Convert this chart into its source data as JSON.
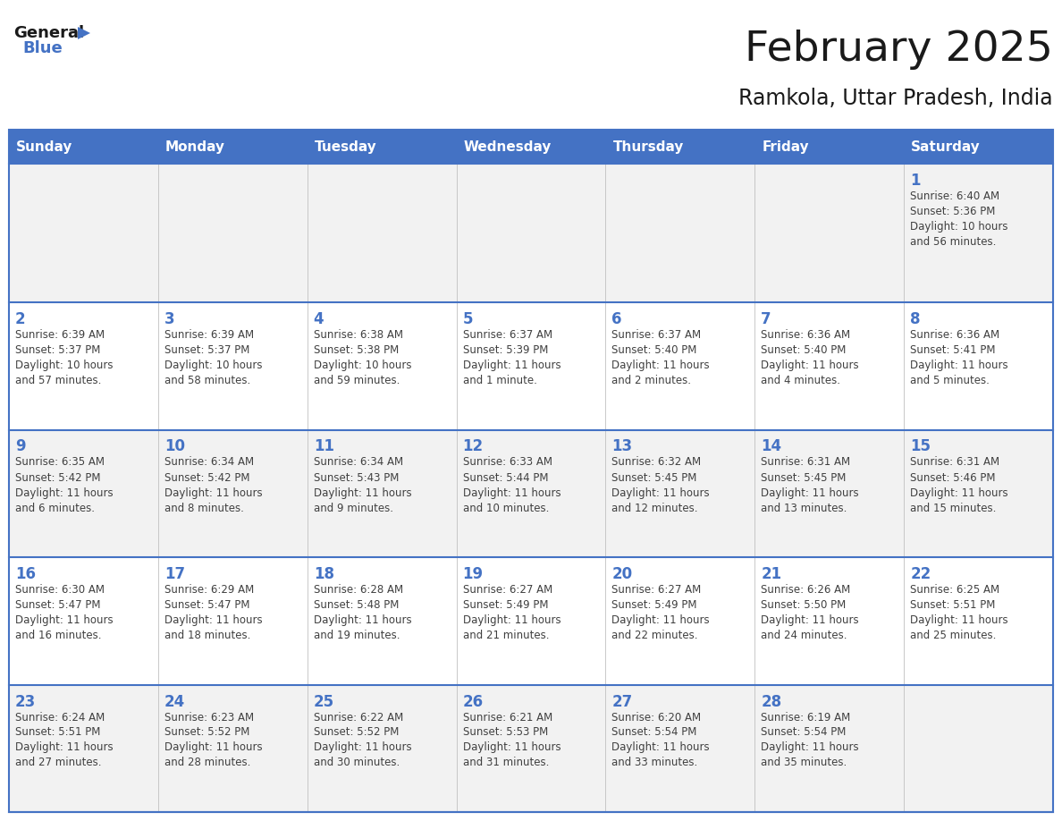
{
  "title": "February 2025",
  "subtitle": "Ramkola, Uttar Pradesh, India",
  "days_of_week": [
    "Sunday",
    "Monday",
    "Tuesday",
    "Wednesday",
    "Thursday",
    "Friday",
    "Saturday"
  ],
  "header_bg_color": "#4472C4",
  "header_text_color": "#FFFFFF",
  "cell_bg_odd": "#F2F2F2",
  "cell_bg_even": "#FFFFFF",
  "border_color": "#4472C4",
  "border_color_light": "#C0C0C0",
  "day_number_color": "#4472C4",
  "cell_text_color": "#404040",
  "title_color": "#1a1a1a",
  "subtitle_color": "#1a1a1a",
  "logo_general_color": "#1a1a1a",
  "logo_blue_color": "#4472C4",
  "calendar_data": [
    [
      null,
      null,
      null,
      null,
      null,
      null,
      {
        "day": 1,
        "sunrise": "6:40 AM",
        "sunset": "5:36 PM",
        "daylight": "10 hours and 56 minutes."
      }
    ],
    [
      {
        "day": 2,
        "sunrise": "6:39 AM",
        "sunset": "5:37 PM",
        "daylight": "10 hours and 57 minutes."
      },
      {
        "day": 3,
        "sunrise": "6:39 AM",
        "sunset": "5:37 PM",
        "daylight": "10 hours and 58 minutes."
      },
      {
        "day": 4,
        "sunrise": "6:38 AM",
        "sunset": "5:38 PM",
        "daylight": "10 hours and 59 minutes."
      },
      {
        "day": 5,
        "sunrise": "6:37 AM",
        "sunset": "5:39 PM",
        "daylight": "11 hours and 1 minute."
      },
      {
        "day": 6,
        "sunrise": "6:37 AM",
        "sunset": "5:40 PM",
        "daylight": "11 hours and 2 minutes."
      },
      {
        "day": 7,
        "sunrise": "6:36 AM",
        "sunset": "5:40 PM",
        "daylight": "11 hours and 4 minutes."
      },
      {
        "day": 8,
        "sunrise": "6:36 AM",
        "sunset": "5:41 PM",
        "daylight": "11 hours and 5 minutes."
      }
    ],
    [
      {
        "day": 9,
        "sunrise": "6:35 AM",
        "sunset": "5:42 PM",
        "daylight": "11 hours and 6 minutes."
      },
      {
        "day": 10,
        "sunrise": "6:34 AM",
        "sunset": "5:42 PM",
        "daylight": "11 hours and 8 minutes."
      },
      {
        "day": 11,
        "sunrise": "6:34 AM",
        "sunset": "5:43 PM",
        "daylight": "11 hours and 9 minutes."
      },
      {
        "day": 12,
        "sunrise": "6:33 AM",
        "sunset": "5:44 PM",
        "daylight": "11 hours and 10 minutes."
      },
      {
        "day": 13,
        "sunrise": "6:32 AM",
        "sunset": "5:45 PM",
        "daylight": "11 hours and 12 minutes."
      },
      {
        "day": 14,
        "sunrise": "6:31 AM",
        "sunset": "5:45 PM",
        "daylight": "11 hours and 13 minutes."
      },
      {
        "day": 15,
        "sunrise": "6:31 AM",
        "sunset": "5:46 PM",
        "daylight": "11 hours and 15 minutes."
      }
    ],
    [
      {
        "day": 16,
        "sunrise": "6:30 AM",
        "sunset": "5:47 PM",
        "daylight": "11 hours and 16 minutes."
      },
      {
        "day": 17,
        "sunrise": "6:29 AM",
        "sunset": "5:47 PM",
        "daylight": "11 hours and 18 minutes."
      },
      {
        "day": 18,
        "sunrise": "6:28 AM",
        "sunset": "5:48 PM",
        "daylight": "11 hours and 19 minutes."
      },
      {
        "day": 19,
        "sunrise": "6:27 AM",
        "sunset": "5:49 PM",
        "daylight": "11 hours and 21 minutes."
      },
      {
        "day": 20,
        "sunrise": "6:27 AM",
        "sunset": "5:49 PM",
        "daylight": "11 hours and 22 minutes."
      },
      {
        "day": 21,
        "sunrise": "6:26 AM",
        "sunset": "5:50 PM",
        "daylight": "11 hours and 24 minutes."
      },
      {
        "day": 22,
        "sunrise": "6:25 AM",
        "sunset": "5:51 PM",
        "daylight": "11 hours and 25 minutes."
      }
    ],
    [
      {
        "day": 23,
        "sunrise": "6:24 AM",
        "sunset": "5:51 PM",
        "daylight": "11 hours and 27 minutes."
      },
      {
        "day": 24,
        "sunrise": "6:23 AM",
        "sunset": "5:52 PM",
        "daylight": "11 hours and 28 minutes."
      },
      {
        "day": 25,
        "sunrise": "6:22 AM",
        "sunset": "5:52 PM",
        "daylight": "11 hours and 30 minutes."
      },
      {
        "day": 26,
        "sunrise": "6:21 AM",
        "sunset": "5:53 PM",
        "daylight": "11 hours and 31 minutes."
      },
      {
        "day": 27,
        "sunrise": "6:20 AM",
        "sunset": "5:54 PM",
        "daylight": "11 hours and 33 minutes."
      },
      {
        "day": 28,
        "sunrise": "6:19 AM",
        "sunset": "5:54 PM",
        "daylight": "11 hours and 35 minutes."
      },
      null
    ]
  ]
}
